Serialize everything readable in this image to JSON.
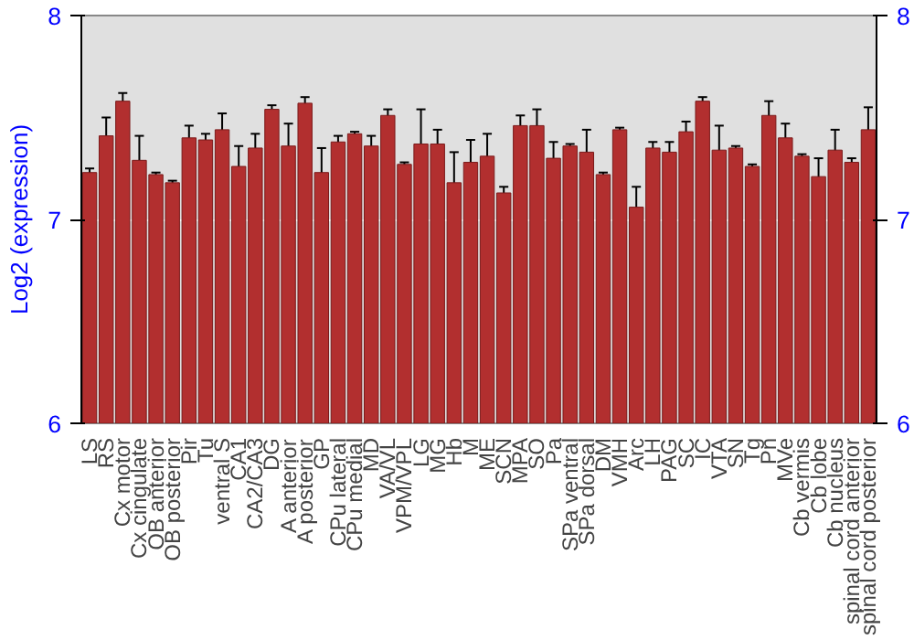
{
  "chart_data": {
    "type": "bar",
    "ylabel": "Log2 (expression)",
    "y2label": null,
    "categories": [
      "LS",
      "RS",
      "Cx motor",
      "Cx cingulate",
      "OB anterior",
      "OB posterior",
      "Pir",
      "Tu",
      "ventral S",
      "CA1",
      "CA2/CA3",
      "DG",
      "A anterior",
      "A posterior",
      "GP",
      "CPu lateral",
      "CPu medial",
      "MD",
      "VA/VL",
      "VPM/VPL",
      "LG",
      "MG",
      "Hb",
      "M",
      "ME",
      "SCN",
      "MPA",
      "SO",
      "Pa",
      "SPa ventral",
      "SPa dorsal",
      "DM",
      "VMH",
      "Arc",
      "LH",
      "PAG",
      "SC",
      "IC",
      "VTA",
      "SN",
      "Tg",
      "Pn",
      "MVe",
      "Cb vermis",
      "Cb lobe",
      "Cb nucleus",
      "spinal cord anterior",
      "spinal cord posterior"
    ],
    "values": [
      7.23,
      7.41,
      7.58,
      7.29,
      7.22,
      7.18,
      7.4,
      7.39,
      7.44,
      7.26,
      7.35,
      7.54,
      7.36,
      7.57,
      7.23,
      7.38,
      7.42,
      7.36,
      7.51,
      7.27,
      7.37,
      7.37,
      7.18,
      7.28,
      7.31,
      7.13,
      7.46,
      7.46,
      7.3,
      7.36,
      7.33,
      7.22,
      7.44,
      7.06,
      7.35,
      7.33,
      7.43,
      7.58,
      7.34,
      7.35,
      7.26,
      7.51,
      7.4,
      7.31,
      7.21,
      7.34,
      7.28,
      7.44
    ],
    "errors": [
      0.02,
      0.09,
      0.04,
      0.12,
      0.01,
      0.01,
      0.06,
      0.03,
      0.08,
      0.1,
      0.07,
      0.02,
      0.11,
      0.03,
      0.12,
      0.03,
      0.01,
      0.05,
      0.03,
      0.01,
      0.17,
      0.07,
      0.15,
      0.11,
      0.11,
      0.03,
      0.05,
      0.08,
      0.08,
      0.01,
      0.11,
      0.01,
      0.01,
      0.1,
      0.03,
      0.05,
      0.05,
      0.02,
      0.12,
      0.01,
      0.01,
      0.07,
      0.07,
      0.01,
      0.09,
      0.1,
      0.02,
      0.11
    ],
    "color": "#b22f2f",
    "ylim": [
      6,
      8
    ],
    "yticks": [
      6,
      7,
      8
    ],
    "y2lim": [
      6,
      8
    ],
    "y2ticks": [
      6,
      7,
      8
    ],
    "grid": "y"
  }
}
